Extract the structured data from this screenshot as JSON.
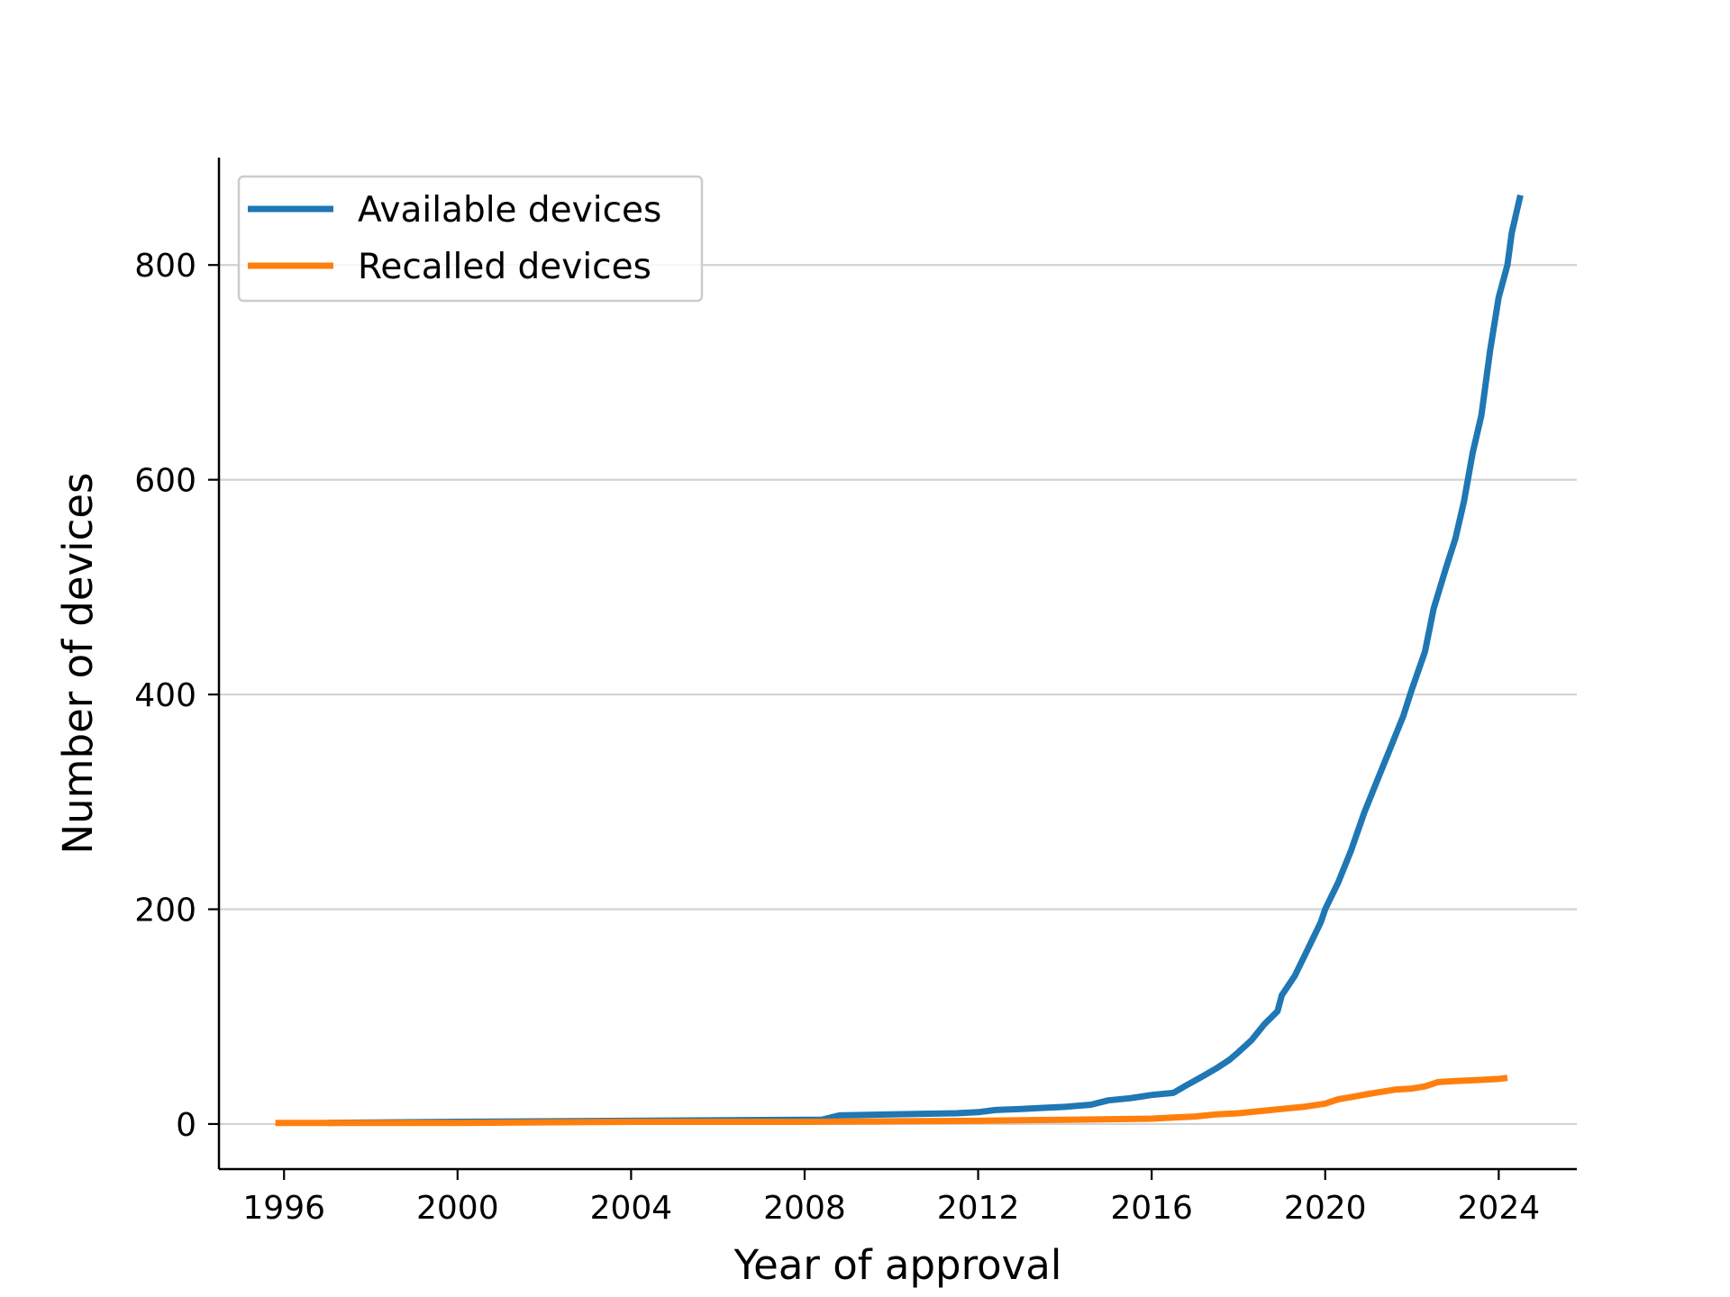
{
  "chart_data": {
    "type": "line",
    "title": "",
    "xlabel": "Year of approval",
    "ylabel": "Number of devices",
    "xlim": [
      1994.5,
      2025.8
    ],
    "ylim": [
      -42,
      900
    ],
    "x_ticks": [
      1996,
      2000,
      2004,
      2008,
      2012,
      2016,
      2020,
      2024
    ],
    "y_ticks": [
      0,
      200,
      400,
      600,
      800
    ],
    "grid": {
      "y": true,
      "x": false
    },
    "legend_position": "top-left",
    "series": [
      {
        "name": "Available devices",
        "color": "#1f77b4",
        "x": [
          1997.0,
          2000.0,
          2004.0,
          2008.0,
          2008.4,
          2008.8,
          2010.0,
          2011.5,
          2012.0,
          2012.4,
          2013.0,
          2013.5,
          2014.0,
          2014.6,
          2015.0,
          2015.5,
          2016.0,
          2016.5,
          2016.8,
          2017.2,
          2017.5,
          2017.8,
          2018.0,
          2018.3,
          2018.6,
          2018.9,
          2019.0,
          2019.3,
          2019.6,
          2019.9,
          2020.0,
          2020.3,
          2020.6,
          2020.9,
          2021.2,
          2021.5,
          2021.8,
          2022.0,
          2022.3,
          2022.5,
          2022.8,
          2023.0,
          2023.2,
          2023.4,
          2023.6,
          2023.8,
          2024.0,
          2024.2,
          2024.3,
          2024.5
        ],
        "y": [
          1,
          2,
          3,
          4,
          4,
          8,
          9,
          10,
          11,
          13,
          14,
          15,
          16,
          18,
          22,
          24,
          27,
          29,
          36,
          45,
          52,
          60,
          67,
          78,
          93,
          105,
          120,
          138,
          163,
          188,
          200,
          225,
          255,
          290,
          320,
          350,
          380,
          405,
          440,
          480,
          520,
          545,
          580,
          625,
          660,
          720,
          770,
          800,
          830,
          865
        ]
      },
      {
        "name": "Recalled devices",
        "color": "#ff7f0e",
        "x": [
          1995.8,
          1997.0,
          2000.0,
          2004.0,
          2008.0,
          2012.0,
          2014.0,
          2016.0,
          2016.5,
          2017.0,
          2017.5,
          2018.0,
          2018.5,
          2019.0,
          2019.5,
          2020.0,
          2020.3,
          2020.6,
          2021.0,
          2021.3,
          2021.6,
          2022.0,
          2022.3,
          2022.6,
          2023.0,
          2023.5,
          2024.0,
          2024.2
        ],
        "y": [
          1,
          1,
          1,
          2,
          2,
          3,
          4,
          5,
          6,
          7,
          9,
          10,
          12,
          14,
          16,
          19,
          23,
          25,
          28,
          30,
          32,
          33,
          35,
          39,
          40,
          41,
          42,
          43
        ]
      }
    ]
  }
}
